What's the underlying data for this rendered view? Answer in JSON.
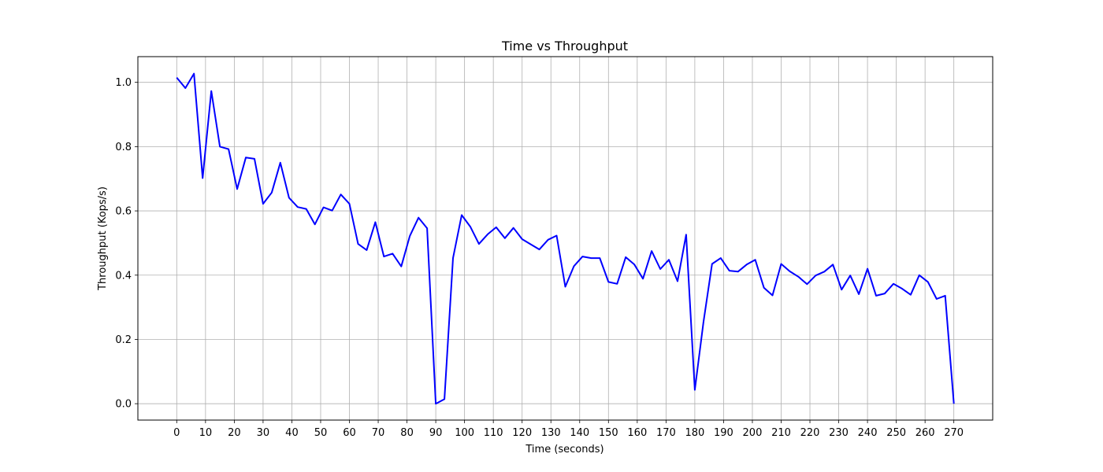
{
  "chart_data": {
    "type": "line",
    "title": "Time vs Throughput",
    "xlabel": "Time (seconds)",
    "ylabel": "Throughput (Kops/s)",
    "xlim": [
      -13.5,
      283.5
    ],
    "ylim": [
      -0.051,
      1.08
    ],
    "x_ticks": [
      0,
      10,
      20,
      30,
      40,
      50,
      60,
      70,
      80,
      90,
      100,
      110,
      120,
      130,
      140,
      150,
      160,
      170,
      180,
      190,
      200,
      210,
      220,
      230,
      240,
      250,
      260,
      270
    ],
    "y_ticks": [
      0.0,
      0.2,
      0.4,
      0.6,
      0.8,
      1.0
    ],
    "y_tick_labels": [
      "0.0",
      "0.2",
      "0.4",
      "0.6",
      "0.8",
      "1.0"
    ],
    "grid": true,
    "line_color": "#0000ff",
    "series": [
      {
        "x": [
          0,
          3,
          6,
          9,
          12,
          15,
          18,
          21,
          24,
          27,
          30,
          33,
          36,
          39,
          42,
          45,
          48,
          51,
          54,
          57,
          60,
          63,
          66,
          69,
          72,
          75,
          78,
          81,
          84,
          87,
          90,
          93,
          96,
          99,
          102,
          105,
          108,
          111,
          114,
          117,
          120,
          123,
          126,
          129,
          132,
          135,
          138,
          141,
          144,
          147,
          150,
          153,
          156,
          159,
          162,
          165,
          168,
          171,
          174,
          177,
          180,
          183,
          186,
          189,
          192,
          195,
          198,
          201,
          204,
          207,
          210,
          213,
          216,
          219,
          222,
          225,
          228,
          231,
          234,
          237,
          240,
          243,
          246,
          249,
          252,
          255,
          258,
          261,
          264,
          267,
          270
        ],
        "y": [
          1.015,
          0.982,
          1.027,
          0.702,
          0.973,
          0.8,
          0.792,
          0.668,
          0.766,
          0.762,
          0.622,
          0.657,
          0.75,
          0.641,
          0.612,
          0.606,
          0.558,
          0.611,
          0.601,
          0.651,
          0.622,
          0.497,
          0.478,
          0.565,
          0.458,
          0.467,
          0.427,
          0.522,
          0.579,
          0.546,
          0.0,
          0.014,
          0.453,
          0.587,
          0.551,
          0.497,
          0.527,
          0.549,
          0.515,
          0.547,
          0.512,
          0.496,
          0.48,
          0.51,
          0.523,
          0.364,
          0.428,
          0.458,
          0.453,
          0.453,
          0.379,
          0.373,
          0.456,
          0.433,
          0.389,
          0.475,
          0.419,
          0.448,
          0.381,
          0.526,
          0.043,
          0.254,
          0.435,
          0.453,
          0.414,
          0.411,
          0.433,
          0.448,
          0.361,
          0.337,
          0.435,
          0.412,
          0.395,
          0.372,
          0.399,
          0.411,
          0.433,
          0.355,
          0.399,
          0.341,
          0.42,
          0.336,
          0.343,
          0.373,
          0.358,
          0.339,
          0.4,
          0.379,
          0.326,
          0.336,
          0.0
        ]
      }
    ]
  }
}
